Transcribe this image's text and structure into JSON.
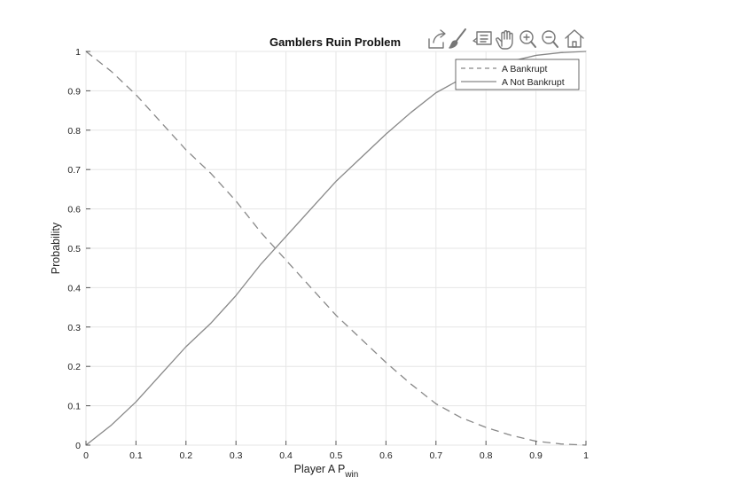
{
  "toolbar": {
    "icons": [
      "export-icon",
      "brush-icon",
      "datatip-icon",
      "pan-icon",
      "zoom-in-icon",
      "zoom-out-icon",
      "home-icon"
    ]
  },
  "chart_data": {
    "type": "line",
    "title": "Gamblers Ruin Problem",
    "xlabel": "Player A P",
    "xlabel_sub": "win",
    "ylabel": "Probability",
    "xlim": [
      0,
      1
    ],
    "ylim": [
      0,
      1
    ],
    "xticks": [
      "0",
      "0.1",
      "0.2",
      "0.3",
      "0.4",
      "0.5",
      "0.6",
      "0.7",
      "0.8",
      "0.9",
      "1"
    ],
    "yticks": [
      "0",
      "0.1",
      "0.2",
      "0.3",
      "0.4",
      "0.5",
      "0.6",
      "0.7",
      "0.8",
      "0.9",
      "1"
    ],
    "grid": true,
    "legend_position": "top-right",
    "x": [
      0,
      0.05,
      0.1,
      0.15,
      0.2,
      0.25,
      0.3,
      0.35,
      0.4,
      0.45,
      0.5,
      0.55,
      0.6,
      0.65,
      0.7,
      0.75,
      0.8,
      0.85,
      0.9,
      0.95,
      1
    ],
    "series": [
      {
        "name": "A Bankrupt",
        "style": "dashed",
        "color": "#888888",
        "values": [
          1.0,
          0.95,
          0.89,
          0.82,
          0.75,
          0.69,
          0.62,
          0.54,
          0.47,
          0.4,
          0.33,
          0.27,
          0.21,
          0.155,
          0.105,
          0.07,
          0.045,
          0.025,
          0.01,
          0.003,
          0.0
        ]
      },
      {
        "name": "A Not Bankrupt",
        "style": "solid",
        "color": "#888888",
        "values": [
          0.0,
          0.05,
          0.11,
          0.18,
          0.25,
          0.31,
          0.38,
          0.46,
          0.53,
          0.6,
          0.67,
          0.73,
          0.79,
          0.845,
          0.895,
          0.93,
          0.955,
          0.975,
          0.99,
          0.997,
          1.0
        ]
      }
    ]
  }
}
